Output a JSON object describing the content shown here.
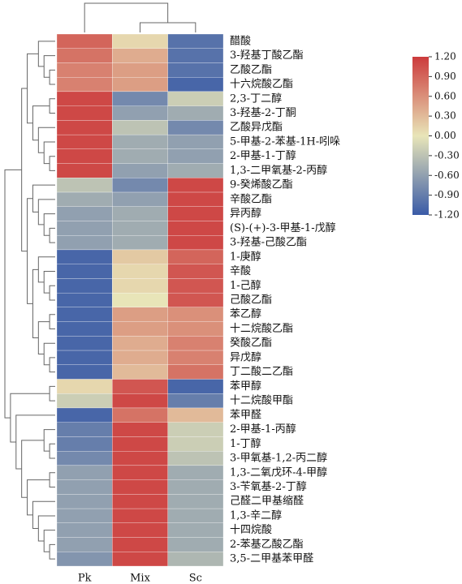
{
  "chart_data": {
    "type": "heatmap",
    "columns": [
      "Pk",
      "Mix",
      "Sc"
    ],
    "rows": [
      "醋酸",
      "3-羟基丁酸乙酯",
      "乙酸乙酯",
      "十六烷酸乙酯",
      "2,3-丁二醇",
      "3-羟基-2-丁酮",
      "乙酸异戊酯",
      "5-甲基-2-苯基-1H-吲哚",
      "2-甲基-1-丁醇",
      "1,3-二甲氧基-2-丙醇",
      "9-癸烯酸乙酯",
      "辛酸乙酯",
      "异丙醇",
      "(S)-(+)-3-甲基-1-戊醇",
      "3-羟基-己酸乙酯",
      "1-庚醇",
      "辛酸",
      "1-己醇",
      "己酸乙酯",
      "苯乙醇",
      "十二烷酸乙酯",
      "癸酸乙酯",
      "异戊醇",
      "丁二酸二乙酯",
      "苯甲醇",
      "十二烷酸甲酯",
      "苯甲醛",
      "2-甲基-1-丙醇",
      "1-丁醇",
      "3-甲氧基-1,2-丙二醇",
      "1,3-二氧戊环-4-甲醇",
      "3-苄氧基-2-丁醇",
      "己醛二甲基缩醛",
      "1,3-辛二醇",
      "十四烷酸",
      "2-苯基乙酸乙酯",
      "3,5-二甲基苯甲醛"
    ],
    "values": [
      [
        0.9,
        0.1,
        -1.0
      ],
      [
        0.8,
        0.4,
        -1.0
      ],
      [
        0.7,
        0.5,
        -1.0
      ],
      [
        0.7,
        0.5,
        -1.1
      ],
      [
        1.1,
        -0.8,
        -0.2
      ],
      [
        1.1,
        -0.6,
        -0.5
      ],
      [
        1.1,
        -0.3,
        -0.8
      ],
      [
        1.1,
        -0.5,
        -0.6
      ],
      [
        1.1,
        -0.5,
        -0.6
      ],
      [
        1.1,
        -0.6,
        -0.5
      ],
      [
        -0.3,
        -0.8,
        1.1
      ],
      [
        -0.5,
        -0.6,
        1.1
      ],
      [
        -0.6,
        -0.5,
        1.1
      ],
      [
        -0.6,
        -0.5,
        1.1
      ],
      [
        -0.6,
        -0.5,
        1.1
      ],
      [
        -1.1,
        0.2,
        0.9
      ],
      [
        -1.1,
        0.1,
        1.0
      ],
      [
        -1.1,
        0.1,
        1.0
      ],
      [
        -1.1,
        0.0,
        1.0
      ],
      [
        -1.1,
        0.5,
        0.6
      ],
      [
        -1.1,
        0.5,
        0.6
      ],
      [
        -1.1,
        0.4,
        0.7
      ],
      [
        -1.1,
        0.4,
        0.7
      ],
      [
        -1.1,
        0.3,
        0.8
      ],
      [
        0.1,
        1.0,
        -1.1
      ],
      [
        -0.2,
        1.1,
        -0.9
      ],
      [
        -1.1,
        0.8,
        0.3
      ],
      [
        -0.9,
        1.1,
        -0.2
      ],
      [
        -0.9,
        1.1,
        -0.2
      ],
      [
        -0.8,
        1.1,
        -0.3
      ],
      [
        -0.6,
        1.1,
        -0.5
      ],
      [
        -0.6,
        1.1,
        -0.5
      ],
      [
        -0.6,
        1.1,
        -0.5
      ],
      [
        -0.6,
        1.1,
        -0.5
      ],
      [
        -0.6,
        1.1,
        -0.5
      ],
      [
        -0.6,
        1.1,
        -0.5
      ],
      [
        -0.7,
        1.1,
        -0.4
      ]
    ],
    "zlim": [
      -1.2,
      1.2
    ],
    "zticks": [
      {
        "value": 1.2,
        "label": "1.20"
      },
      {
        "value": 0.9,
        "label": "0.90"
      },
      {
        "value": 0.6,
        "label": "0.60"
      },
      {
        "value": 0.3,
        "label": "0.30"
      },
      {
        "value": 0,
        "label": "0.00"
      },
      {
        "value": -0.3,
        "label": "-0.30"
      },
      {
        "value": -0.6,
        "label": "-0.60"
      },
      {
        "value": -0.9,
        "label": "-0.90"
      },
      {
        "value": -1.2,
        "label": "-1.20"
      }
    ],
    "colors": [
      "#3a5ba7",
      "#e8e5b8",
      "#cc3a3c"
    ]
  }
}
